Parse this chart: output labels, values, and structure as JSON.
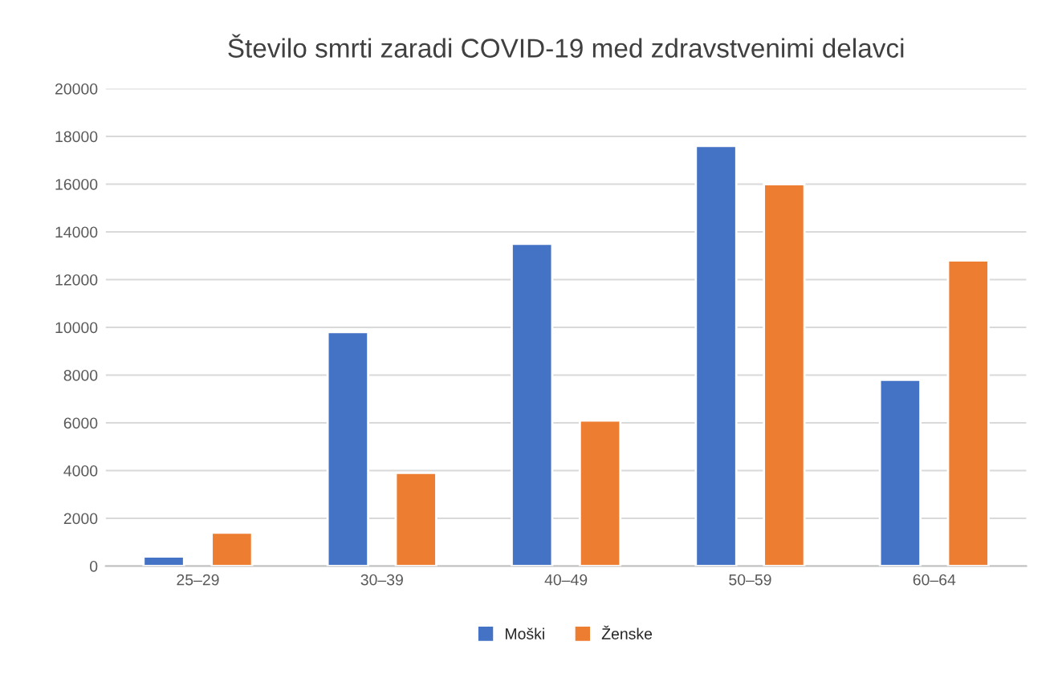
{
  "chart_data": {
    "type": "bar",
    "title": "Število smrti zaradi COVID-19 med zdravstvenimi delavci",
    "categories": [
      "25–29",
      "30–39",
      "40–49",
      "50–59",
      "60–64"
    ],
    "series": [
      {
        "name": "Moški",
        "color": "#4472c4",
        "values": [
          400,
          9800,
          13500,
          17600,
          7800
        ]
      },
      {
        "name": "Ženske",
        "color": "#ed7d31",
        "values": [
          1400,
          3900,
          6100,
          16000,
          12800
        ]
      }
    ],
    "ylim": [
      0,
      20000
    ],
    "yticks": [
      0,
      2000,
      4000,
      6000,
      8000,
      10000,
      12000,
      14000,
      16000,
      18000,
      20000
    ],
    "grid": "y",
    "legend": "bottom"
  }
}
